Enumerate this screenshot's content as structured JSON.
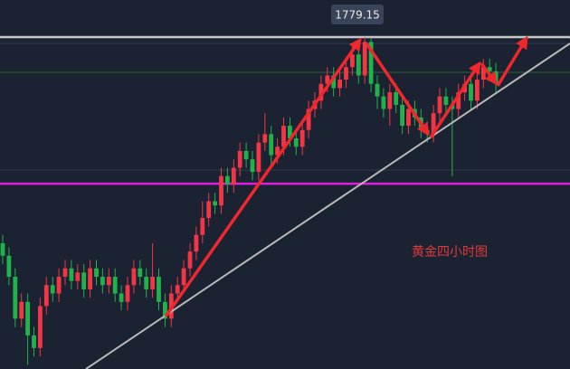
{
  "chart_data": {
    "type": "candlestick",
    "annotation": "黄金四小时图",
    "up_color": "#f23645",
    "down_color": "#22b24c",
    "ylim": [
      1700,
      1788
    ],
    "hlines": [
      {
        "value": 1779.15,
        "color": "#c8c8c8"
      },
      {
        "value": 1744.2,
        "color": "#e01ee0"
      }
    ],
    "open": [
      1730,
      1727,
      1722,
      1712,
      1716,
      1708,
      1705,
      1715,
      1720,
      1718,
      1722,
      1724,
      1721,
      1723,
      1719,
      1724,
      1722,
      1720,
      1722,
      1718,
      1716,
      1720,
      1724,
      1722,
      1719,
      1722,
      1716,
      1712,
      1718,
      1720,
      1724,
      1728,
      1732,
      1736,
      1740,
      1739,
      1746,
      1744,
      1748,
      1752,
      1750,
      1747,
      1754,
      1756,
      1751,
      1753,
      1758,
      1755,
      1753,
      1757,
      1762,
      1764,
      1768,
      1770,
      1767,
      1769,
      1772,
      1775,
      1770,
      1778,
      1768,
      1765,
      1762,
      1766,
      1763,
      1758,
      1762,
      1760,
      1757,
      1756,
      1761,
      1765,
      1763,
      1762,
      1766,
      1768,
      1764,
      1769,
      1772,
      1771
    ],
    "high": [
      1732,
      1729,
      1724,
      1718,
      1718,
      1710,
      1717,
      1722,
      1722,
      1724,
      1726,
      1726,
      1725,
      1725,
      1726,
      1726,
      1724,
      1724,
      1724,
      1720,
      1722,
      1726,
      1726,
      1724,
      1730,
      1724,
      1718,
      1720,
      1722,
      1726,
      1730,
      1734,
      1740,
      1742,
      1742,
      1748,
      1748,
      1750,
      1754,
      1754,
      1752,
      1756,
      1761,
      1758,
      1755,
      1760,
      1760,
      1757,
      1759,
      1764,
      1766,
      1770,
      1772,
      1772,
      1771,
      1774,
      1777,
      1777,
      1779.15,
      1779,
      1770,
      1767,
      1768,
      1768,
      1765,
      1764,
      1764,
      1762,
      1759,
      1763,
      1767,
      1767,
      1765,
      1768,
      1770,
      1770,
      1771,
      1774,
      1774,
      1773
    ],
    "low": [
      1725,
      1720,
      1710,
      1710,
      1701,
      1703,
      1703,
      1713,
      1716,
      1716,
      1720,
      1719,
      1719,
      1717,
      1717,
      1720,
      1718,
      1718,
      1716,
      1714,
      1714,
      1718,
      1720,
      1717,
      1717,
      1714,
      1710,
      1710,
      1716,
      1718,
      1722,
      1726,
      1730,
      1734,
      1737,
      1737,
      1742,
      1742,
      1746,
      1748,
      1745,
      1745,
      1752,
      1749,
      1749,
      1751,
      1753,
      1751,
      1751,
      1755,
      1760,
      1762,
      1766,
      1765,
      1765,
      1767,
      1770,
      1768,
      1768,
      1766,
      1762,
      1760,
      1758,
      1761,
      1756,
      1756,
      1758,
      1755,
      1754,
      1754,
      1759,
      1761,
      1746,
      1760,
      1764,
      1762,
      1762,
      1767,
      1769,
      1766
    ],
    "close": [
      1727,
      1722,
      1712,
      1716,
      1708,
      1705,
      1715,
      1720,
      1718,
      1722,
      1724,
      1721,
      1723,
      1719,
      1724,
      1722,
      1720,
      1722,
      1718,
      1716,
      1720,
      1724,
      1722,
      1719,
      1722,
      1716,
      1712,
      1718,
      1720,
      1724,
      1728,
      1732,
      1736,
      1740,
      1739,
      1746,
      1744,
      1748,
      1752,
      1750,
      1747,
      1754,
      1756,
      1751,
      1753,
      1758,
      1755,
      1753,
      1757,
      1762,
      1764,
      1768,
      1770,
      1767,
      1769,
      1772,
      1775,
      1770,
      1778,
      1768,
      1765,
      1762,
      1766,
      1763,
      1758,
      1762,
      1760,
      1757,
      1756,
      1761,
      1765,
      1763,
      1762,
      1766,
      1768,
      1764,
      1769,
      1772,
      1771,
      1768
    ]
  }
}
